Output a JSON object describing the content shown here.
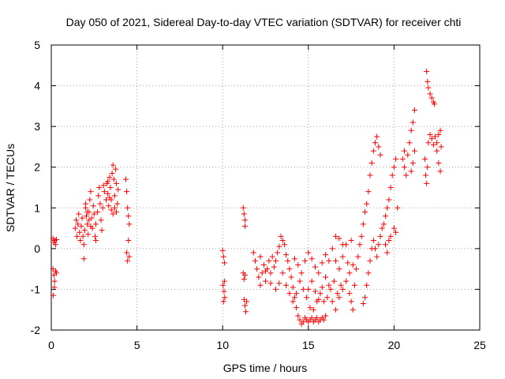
{
  "chart_data": {
    "type": "scatter",
    "title": "Day 050 of 2021, Sidereal Day-to-day VTEC variation (SDTVAR) for receiver chti",
    "xlabel": "GPS time / hours",
    "ylabel": "SDTVAR / TECUs",
    "xlim": [
      0,
      25
    ],
    "ylim": [
      -2,
      5
    ],
    "xticks": [
      0,
      5,
      10,
      15,
      20,
      25
    ],
    "yticks": [
      -2,
      -1,
      0,
      1,
      2,
      3,
      4,
      5
    ],
    "grid": true,
    "marker": "+",
    "color": "#ff0000",
    "series": [
      {
        "points": [
          [
            0.1,
            0.25
          ],
          [
            0.15,
            0.15
          ],
          [
            0.2,
            0.2
          ],
          [
            0.25,
            0.1
          ],
          [
            0.3,
            0.22
          ],
          [
            0.1,
            -0.5
          ],
          [
            0.15,
            -0.65
          ],
          [
            0.2,
            -0.8
          ],
          [
            0.25,
            -0.55
          ],
          [
            0.3,
            -0.6
          ],
          [
            0.12,
            -1.15
          ],
          [
            0.18,
            -0.95
          ],
          [
            1.4,
            0.5
          ],
          [
            1.45,
            0.7
          ],
          [
            1.5,
            0.3
          ],
          [
            1.55,
            0.6
          ],
          [
            1.6,
            0.85
          ],
          [
            1.65,
            0.4
          ],
          [
            1.7,
            0.2
          ],
          [
            1.75,
            0.55
          ],
          [
            1.8,
            0.75
          ],
          [
            1.85,
            0.3
          ],
          [
            1.9,
            0.1
          ],
          [
            1.95,
            0.45
          ],
          [
            2.0,
            1.0
          ],
          [
            2.05,
            0.8
          ],
          [
            2.1,
            0.6
          ],
          [
            2.15,
            0.35
          ],
          [
            2.2,
            0.9
          ],
          [
            2.25,
            1.2
          ],
          [
            2.3,
            1.4
          ],
          [
            2.35,
            0.75
          ],
          [
            2.4,
            0.5
          ],
          [
            2.45,
            1.05
          ],
          [
            2.5,
            0.85
          ],
          [
            2.55,
            0.3
          ],
          [
            2.6,
            0.2
          ],
          [
            1.9,
            -0.25
          ],
          [
            2.0,
            1.1
          ],
          [
            2.1,
            0.9
          ],
          [
            2.2,
            0.7
          ],
          [
            2.3,
            0.55
          ],
          [
            2.6,
            0.6
          ],
          [
            2.7,
            0.9
          ],
          [
            2.75,
            1.3
          ],
          [
            2.8,
            1.5
          ],
          [
            2.85,
            1.1
          ],
          [
            2.9,
            0.7
          ],
          [
            2.95,
            0.45
          ],
          [
            3.0,
            1.0
          ],
          [
            3.05,
            1.55
          ],
          [
            3.1,
            1.4
          ],
          [
            3.2,
            1.2
          ],
          [
            3.25,
            1.6
          ],
          [
            3.3,
            1.35
          ],
          [
            3.35,
            1.05
          ],
          [
            3.4,
            1.75
          ],
          [
            3.45,
            1.5
          ],
          [
            3.5,
            1.2
          ],
          [
            3.55,
            1.85
          ],
          [
            3.6,
            2.05
          ],
          [
            3.65,
            1.7
          ],
          [
            3.7,
            1.3
          ],
          [
            3.75,
            1.95
          ],
          [
            3.8,
            1.6
          ],
          [
            3.85,
            1.1
          ],
          [
            3.9,
            1.45
          ],
          [
            3.5,
            0.95
          ],
          [
            3.6,
            0.85
          ],
          [
            3.7,
            1.0
          ],
          [
            3.8,
            0.9
          ],
          [
            3.4,
            1.25
          ],
          [
            3.3,
            1.65
          ],
          [
            4.35,
            1.7
          ],
          [
            4.4,
            1.4
          ],
          [
            4.45,
            1.0
          ],
          [
            4.5,
            0.8
          ],
          [
            4.55,
            0.6
          ],
          [
            4.4,
            -0.1
          ],
          [
            4.45,
            -0.3
          ],
          [
            4.5,
            0.2
          ],
          [
            4.55,
            -0.2
          ],
          [
            10.0,
            -0.05
          ],
          [
            10.05,
            -0.2
          ],
          [
            10.1,
            -0.35
          ],
          [
            10.02,
            -0.9
          ],
          [
            10.08,
            -1.05
          ],
          [
            10.12,
            -1.2
          ],
          [
            10.05,
            -1.3
          ],
          [
            10.1,
            -0.8
          ],
          [
            11.2,
            1.0
          ],
          [
            11.25,
            0.85
          ],
          [
            11.3,
            0.7
          ],
          [
            11.3,
            0.55
          ],
          [
            11.2,
            -0.6
          ],
          [
            11.25,
            -0.75
          ],
          [
            11.3,
            -0.65
          ],
          [
            11.25,
            -1.25
          ],
          [
            11.3,
            -1.4
          ],
          [
            11.35,
            -1.55
          ],
          [
            11.4,
            -1.3
          ],
          [
            11.8,
            -0.1
          ],
          [
            11.9,
            -0.3
          ],
          [
            12.0,
            -0.5
          ],
          [
            12.1,
            -0.7
          ],
          [
            12.2,
            -0.9
          ],
          [
            12.3,
            -0.6
          ],
          [
            12.4,
            -0.4
          ],
          [
            12.5,
            -0.8
          ],
          [
            12.6,
            -0.5
          ],
          [
            12.7,
            -0.3
          ],
          [
            12.8,
            -0.6
          ],
          [
            12.9,
            -0.2
          ],
          [
            13.0,
            -0.45
          ],
          [
            13.1,
            -0.3
          ],
          [
            13.2,
            -0.1
          ],
          [
            13.3,
            0.05
          ],
          [
            13.4,
            0.3
          ],
          [
            13.5,
            0.2
          ],
          [
            13.6,
            0.1
          ],
          [
            13.7,
            -0.15
          ],
          [
            13.8,
            -0.3
          ],
          [
            13.9,
            -0.5
          ],
          [
            14.0,
            -0.7
          ],
          [
            14.1,
            -0.95
          ],
          [
            14.2,
            -1.2
          ],
          [
            14.3,
            -1.45
          ],
          [
            14.4,
            -1.65
          ],
          [
            14.5,
            -1.75
          ],
          [
            14.6,
            -1.85
          ],
          [
            14.7,
            -1.8
          ],
          [
            14.8,
            -1.7
          ],
          [
            14.9,
            -1.75
          ],
          [
            15.0,
            -1.8
          ],
          [
            15.1,
            -1.75
          ],
          [
            15.2,
            -1.7
          ],
          [
            15.3,
            -1.8
          ],
          [
            15.4,
            -1.75
          ],
          [
            15.5,
            -1.7
          ],
          [
            15.6,
            -1.8
          ],
          [
            15.7,
            -1.75
          ],
          [
            15.8,
            -1.7
          ],
          [
            15.9,
            -1.75
          ],
          [
            16.0,
            -1.65
          ],
          [
            12.2,
            -0.2
          ],
          [
            12.5,
            -0.55
          ],
          [
            12.8,
            -0.85
          ],
          [
            13.1,
            -1.0
          ],
          [
            13.3,
            -0.85
          ],
          [
            13.5,
            -0.6
          ],
          [
            13.7,
            -0.9
          ],
          [
            13.9,
            -1.1
          ],
          [
            14.1,
            -1.3
          ],
          [
            14.3,
            -1.1
          ],
          [
            14.5,
            -0.8
          ],
          [
            14.7,
            -1.0
          ],
          [
            14.9,
            -1.2
          ],
          [
            15.1,
            -1.45
          ],
          [
            15.3,
            -1.5
          ],
          [
            15.5,
            -1.3
          ],
          [
            15.7,
            -1.1
          ],
          [
            15.9,
            -1.3
          ],
          [
            16.1,
            -1.2
          ],
          [
            16.3,
            -1.0
          ],
          [
            16.5,
            -0.8
          ],
          [
            16.7,
            -1.1
          ],
          [
            16.9,
            -0.9
          ],
          [
            14.2,
            -0.25
          ],
          [
            14.4,
            -0.4
          ],
          [
            14.6,
            -0.6
          ],
          [
            14.8,
            -0.3
          ],
          [
            15.0,
            -0.1
          ],
          [
            15.2,
            -0.25
          ],
          [
            15.4,
            -0.45
          ],
          [
            15.6,
            -0.6
          ],
          [
            15.8,
            -0.35
          ],
          [
            16.0,
            -0.15
          ],
          [
            16.2,
            -0.3
          ],
          [
            16.4,
            0.0
          ],
          [
            16.6,
            -0.3
          ],
          [
            16.8,
            -0.5
          ],
          [
            17.0,
            -0.2
          ],
          [
            17.2,
            0.1
          ],
          [
            15.0,
            -1.0
          ],
          [
            15.2,
            -0.8
          ],
          [
            15.4,
            -1.05
          ],
          [
            15.6,
            -1.25
          ],
          [
            15.8,
            -0.95
          ],
          [
            16.0,
            -0.7
          ],
          [
            16.2,
            -0.9
          ],
          [
            16.4,
            -1.3
          ],
          [
            16.6,
            -1.5
          ],
          [
            16.8,
            -1.2
          ],
          [
            17.0,
            -1.0
          ],
          [
            17.2,
            -0.8
          ],
          [
            17.4,
            -0.6
          ],
          [
            17.6,
            -0.4
          ],
          [
            16.6,
            0.3
          ],
          [
            16.8,
            0.25
          ],
          [
            17.0,
            0.1
          ],
          [
            17.3,
            -0.35
          ],
          [
            17.5,
            0.2
          ],
          [
            17.4,
            -1.1
          ],
          [
            17.5,
            -1.3
          ],
          [
            17.6,
            -1.5
          ],
          [
            17.7,
            -0.9
          ],
          [
            17.8,
            -0.5
          ],
          [
            17.9,
            -0.2
          ],
          [
            18.0,
            0.1
          ],
          [
            18.1,
            0.3
          ],
          [
            18.2,
            0.6
          ],
          [
            18.3,
            0.9
          ],
          [
            18.4,
            1.1
          ],
          [
            18.5,
            1.4
          ],
          [
            18.6,
            1.8
          ],
          [
            18.7,
            2.1
          ],
          [
            18.8,
            2.4
          ],
          [
            18.9,
            2.6
          ],
          [
            19.0,
            2.75
          ],
          [
            19.1,
            2.5
          ],
          [
            19.2,
            2.3
          ],
          [
            18.2,
            -1.35
          ],
          [
            18.3,
            -1.2
          ],
          [
            18.4,
            -0.9
          ],
          [
            18.5,
            -0.6
          ],
          [
            18.6,
            -0.3
          ],
          [
            18.7,
            0.0
          ],
          [
            18.8,
            0.2
          ],
          [
            18.9,
            0.0
          ],
          [
            19.0,
            -0.2
          ],
          [
            19.1,
            0.1
          ],
          [
            19.2,
            0.3
          ],
          [
            19.3,
            0.5
          ],
          [
            19.4,
            0.6
          ],
          [
            19.5,
            0.8
          ],
          [
            19.6,
            1.0
          ],
          [
            19.7,
            1.2
          ],
          [
            19.8,
            1.5
          ],
          [
            19.9,
            1.8
          ],
          [
            20.0,
            2.0
          ],
          [
            20.1,
            2.2
          ],
          [
            19.5,
            0.1
          ],
          [
            19.6,
            -0.1
          ],
          [
            19.8,
            0.3
          ],
          [
            20.0,
            0.5
          ],
          [
            20.1,
            0.4
          ],
          [
            19.7,
            0.2
          ],
          [
            20.2,
            1.0
          ],
          [
            20.5,
            2.2
          ],
          [
            20.6,
            2.0
          ],
          [
            20.7,
            1.8
          ],
          [
            20.8,
            2.3
          ],
          [
            20.9,
            2.6
          ],
          [
            21.0,
            2.9
          ],
          [
            21.1,
            3.1
          ],
          [
            21.2,
            3.4
          ],
          [
            21.0,
            1.9
          ],
          [
            21.1,
            2.1
          ],
          [
            21.2,
            2.4
          ],
          [
            20.6,
            2.4
          ],
          [
            21.8,
            2.2
          ],
          [
            21.85,
            1.8
          ],
          [
            21.9,
            1.6
          ],
          [
            21.95,
            2.0
          ],
          [
            21.9,
            4.35
          ],
          [
            21.95,
            4.1
          ],
          [
            22.0,
            3.95
          ],
          [
            22.1,
            3.8
          ],
          [
            22.2,
            3.7
          ],
          [
            22.3,
            3.6
          ],
          [
            22.35,
            3.55
          ],
          [
            22.0,
            2.6
          ],
          [
            22.1,
            2.8
          ],
          [
            22.2,
            2.7
          ],
          [
            22.3,
            2.55
          ],
          [
            22.4,
            2.75
          ],
          [
            22.5,
            2.6
          ],
          [
            22.6,
            2.8
          ],
          [
            22.7,
            2.9
          ],
          [
            22.5,
            2.4
          ],
          [
            22.6,
            2.1
          ],
          [
            22.7,
            1.9
          ],
          [
            22.75,
            2.5
          ]
        ]
      }
    ]
  }
}
